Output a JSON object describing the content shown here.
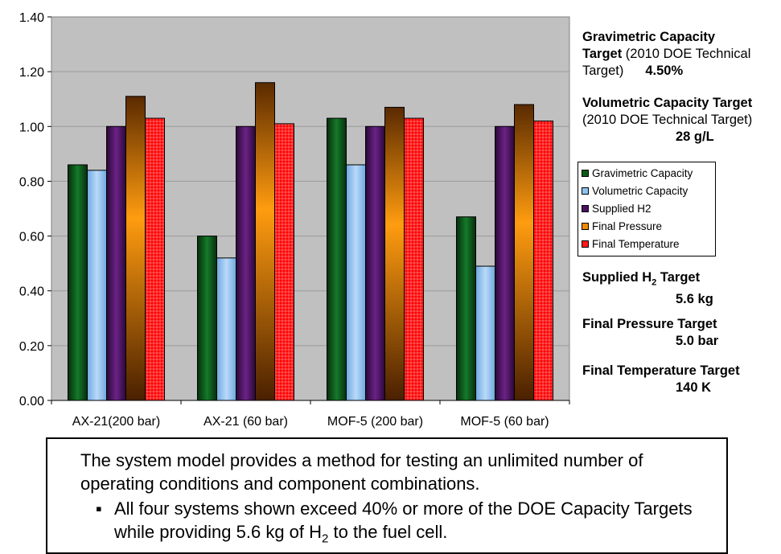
{
  "chart_data": {
    "type": "bar",
    "categories": [
      "AX-21(200 bar)",
      "AX-21 (60 bar)",
      "MOF-5 (200 bar)",
      "MOF-5 (60 bar)"
    ],
    "series": [
      {
        "name": "Gravimetric Capacity",
        "values": [
          0.86,
          0.6,
          1.03,
          0.67
        ]
      },
      {
        "name": "Volumetric Capacity",
        "values": [
          0.84,
          0.52,
          0.86,
          0.49
        ]
      },
      {
        "name": "Supplied H2",
        "values": [
          1.0,
          1.0,
          1.0,
          1.0
        ]
      },
      {
        "name": "Final Pressure",
        "values": [
          1.11,
          1.16,
          1.07,
          1.08
        ]
      },
      {
        "name": "Final Temperature",
        "values": [
          1.03,
          1.01,
          1.03,
          1.02
        ]
      }
    ],
    "y_ticks": [
      "0.00",
      "0.20",
      "0.40",
      "0.60",
      "0.80",
      "1.00",
      "1.20",
      "1.40"
    ],
    "ylim": [
      0,
      1.4
    ],
    "grid": true,
    "legend_position": "right",
    "colors": [
      "#0b5a16",
      "#8fc3f1",
      "#4a1260",
      "#f28a00",
      "#ff1a1a"
    ]
  },
  "targets": {
    "gravimetric": {
      "line1": "Gravimetric Capacity",
      "line2_bold": "Target",
      "line2_rest": " (2010 DOE Technical",
      "line3_rest": "Target)",
      "value": "4.50%"
    },
    "volumetric": {
      "line1": "Volumetric Capacity Target",
      "line2": "(2010 DOE Technical Target)",
      "value": "28 g/L"
    },
    "supplied": {
      "label": "Supplied H",
      "sub": "2",
      "label_end": " Target",
      "value": "5.6 kg"
    },
    "pressure": {
      "label": "Final Pressure Target",
      "value": "5.0 bar"
    },
    "temperature": {
      "label": "Final Temperature Target",
      "value": "140 K"
    }
  },
  "legend": [
    {
      "label": "Gravimetric Capacity",
      "color": "#0b5a16"
    },
    {
      "label": "Volumetric Capacity",
      "color": "#8fc3f1"
    },
    {
      "label": "Supplied H2",
      "color": "#4a1260"
    },
    {
      "label": "Final Pressure",
      "color": "#f28a00"
    },
    {
      "label": "Final Temperature",
      "color": "#ff1a1a"
    }
  ],
  "note": {
    "main": "The system model provides a method for testing an unlimited number of operating conditions and component combinations.",
    "bullet_symbol": "▪",
    "bullet_text_before": "All four systems shown exceed 40% or more of the DOE Capacity Targets while providing 5.6 kg of H",
    "bullet_sub": "2",
    "bullet_text_after": " to the fuel cell."
  }
}
